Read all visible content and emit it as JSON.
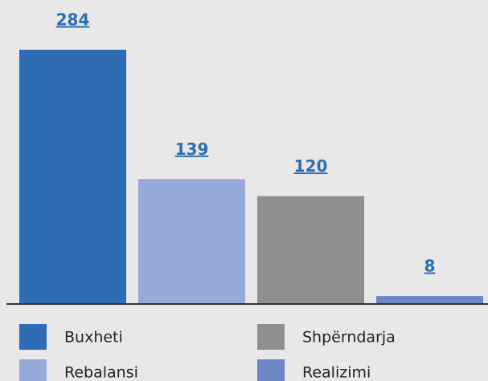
{
  "chart_data": {
    "type": "bar",
    "categories": [
      "Buxheti",
      "Rebalansi",
      "Shpërndarja",
      "Realizimi"
    ],
    "values": [
      284,
      139,
      120,
      8
    ],
    "colors": [
      "#2e6db4",
      "#96a9d8",
      "#8e8f91",
      "#6d87c4"
    ],
    "label_color": "#2e6db4"
  }
}
